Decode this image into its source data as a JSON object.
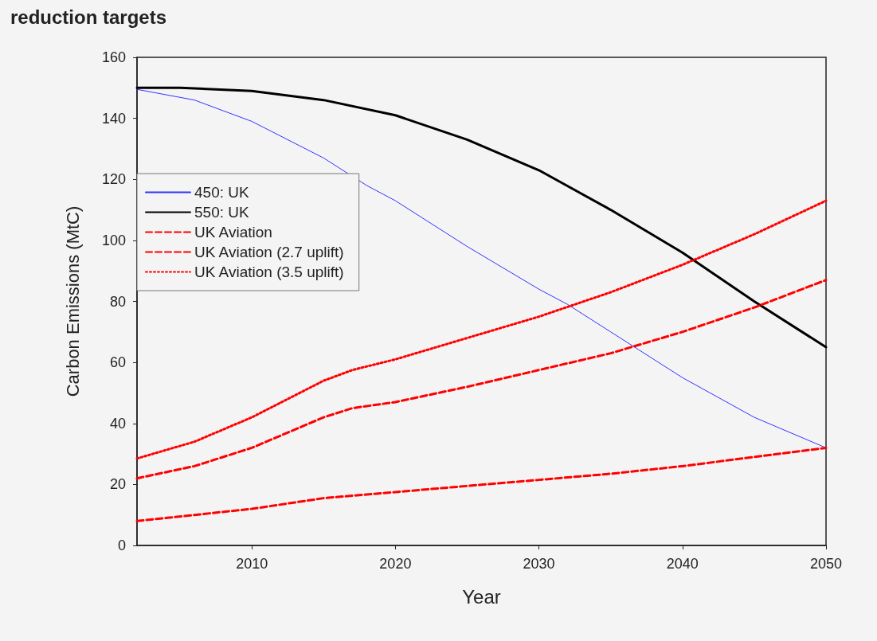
{
  "chart_data": {
    "type": "line",
    "title": "reduction targets",
    "xlabel": "Year",
    "ylabel": "Carbon Emissions (MtC)",
    "xlim": [
      2002,
      2050
    ],
    "xticks": [
      2010,
      2020,
      2030,
      2040,
      2050
    ],
    "ylim": [
      0,
      160
    ],
    "yticks": [
      0,
      20,
      40,
      60,
      80,
      100,
      120,
      140,
      160
    ],
    "grid": false,
    "legend": "left",
    "marker": "none",
    "series": [
      {
        "name": "450: UK",
        "color": "#3333ff",
        "line_style": "solid",
        "x": [
          2002,
          2006,
          2010,
          2015,
          2018,
          2020,
          2025,
          2030,
          2032,
          2035,
          2037,
          2040,
          2045,
          2050
        ],
        "values": [
          149.5,
          146,
          139,
          127,
          118,
          113,
          98,
          84,
          79,
          70,
          64,
          55,
          42,
          32
        ]
      },
      {
        "name": "550: UK",
        "color": "#000000",
        "line_style": "solid",
        "x": [
          2002,
          2005,
          2010,
          2015,
          2020,
          2025,
          2030,
          2035,
          2040,
          2045,
          2050
        ],
        "values": [
          150,
          150,
          149,
          146,
          141,
          133,
          123,
          110,
          96,
          80,
          65
        ]
      },
      {
        "name": "UK Aviation",
        "color": "#ff0000",
        "line_style": "dashed",
        "x": [
          2002,
          2006,
          2010,
          2015,
          2020,
          2025,
          2030,
          2035,
          2040,
          2045,
          2050
        ],
        "values": [
          8,
          10,
          12,
          15.5,
          17.5,
          19.5,
          21.5,
          23.5,
          26,
          29,
          32
        ]
      },
      {
        "name": "UK Aviation (2.7 uplift)",
        "color": "#ff0000",
        "line_style": "dashed",
        "x": [
          2002,
          2006,
          2010,
          2015,
          2017,
          2020,
          2025,
          2030,
          2035,
          2040,
          2045,
          2050
        ],
        "values": [
          22,
          26,
          32,
          42,
          45,
          47,
          52,
          57.5,
          63,
          70,
          78,
          87
        ]
      },
      {
        "name": "UK Aviation (3.5 uplift)",
        "color": "#ff0000",
        "line_style": "dotted",
        "x": [
          2002,
          2006,
          2010,
          2015,
          2017,
          2020,
          2025,
          2030,
          2035,
          2040,
          2045,
          2050
        ],
        "values": [
          28.5,
          34,
          42,
          54,
          57.5,
          61,
          68,
          75,
          83,
          92,
          102,
          113
        ]
      }
    ]
  }
}
